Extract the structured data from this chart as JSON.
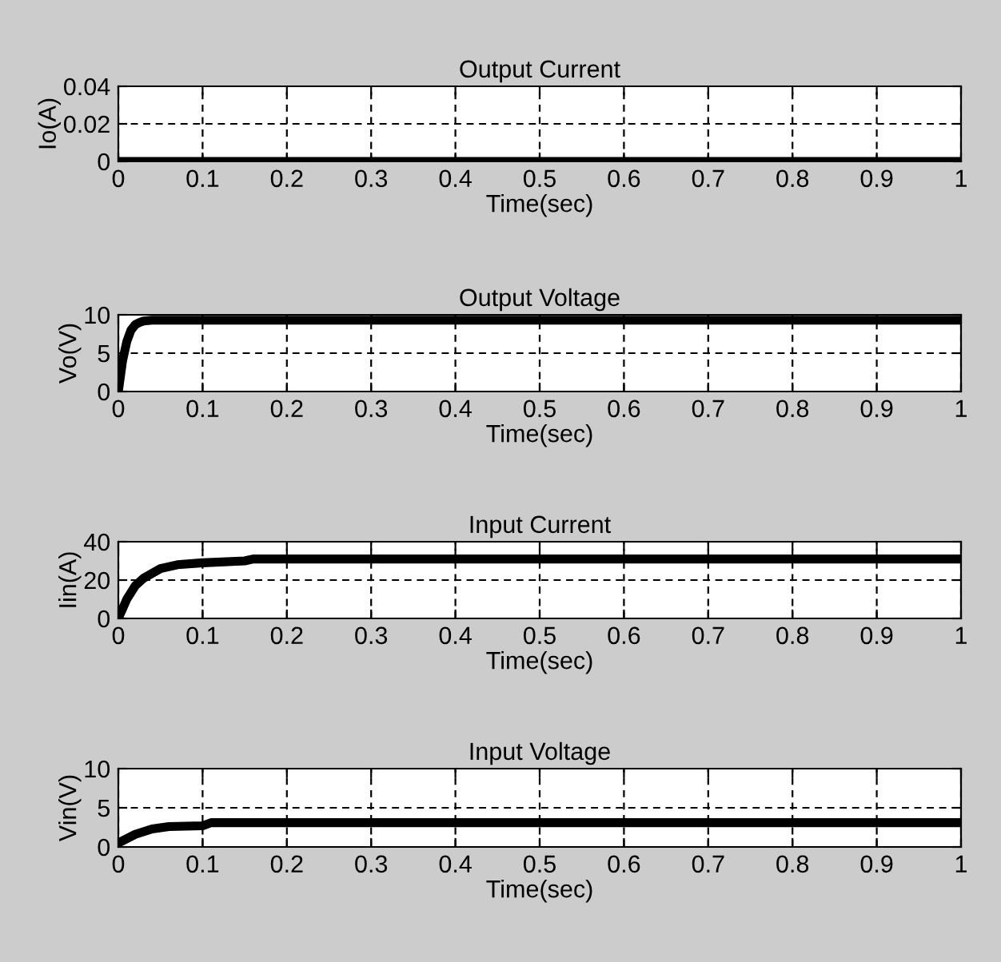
{
  "chart_data": [
    {
      "type": "line",
      "title": "Output Current",
      "xlabel": "Time(sec)",
      "ylabel": "Io(A)",
      "xlim": [
        0,
        1
      ],
      "ylim": [
        0,
        0.04
      ],
      "xticks": [
        0,
        0.1,
        0.2,
        0.3,
        0.4,
        0.5,
        0.6,
        0.7,
        0.8,
        0.9,
        1
      ],
      "yticks": [
        0,
        0.02,
        0.04
      ],
      "grid": true,
      "series": [
        {
          "color": "#000000",
          "x": [
            0,
            0.5,
            1
          ],
          "values": [
            0,
            0,
            0
          ]
        }
      ]
    },
    {
      "type": "line",
      "title": "Output Voltage",
      "xlabel": "Time(sec)",
      "ylabel": "Vo(V)",
      "xlim": [
        0,
        1
      ],
      "ylim": [
        0,
        10
      ],
      "xticks": [
        0,
        0.1,
        0.2,
        0.3,
        0.4,
        0.5,
        0.6,
        0.7,
        0.8,
        0.9,
        1
      ],
      "yticks": [
        0,
        5,
        10
      ],
      "grid": true,
      "series": [
        {
          "color": "#000000",
          "x": [
            0,
            0.005,
            0.01,
            0.015,
            0.02,
            0.025,
            0.03,
            0.04,
            0.1,
            0.5,
            1
          ],
          "values": [
            0,
            4,
            6.5,
            8,
            8.7,
            9,
            9.2,
            9.3,
            9.3,
            9.3,
            9.3
          ]
        }
      ]
    },
    {
      "type": "line",
      "title": "Input Current",
      "xlabel": "Time(sec)",
      "ylabel": "Iin(A)",
      "xlim": [
        0,
        1
      ],
      "ylim": [
        0,
        40
      ],
      "xticks": [
        0,
        0.1,
        0.2,
        0.3,
        0.4,
        0.5,
        0.6,
        0.7,
        0.8,
        0.9,
        1
      ],
      "yticks": [
        0,
        20,
        40
      ],
      "grid": true,
      "series": [
        {
          "color": "#000000",
          "x": [
            0,
            0.01,
            0.02,
            0.03,
            0.05,
            0.07,
            0.1,
            0.15,
            0.16,
            0.5,
            1
          ],
          "values": [
            0,
            10,
            17,
            21,
            26,
            28,
            29,
            30,
            31,
            31,
            31
          ]
        }
      ]
    },
    {
      "type": "line",
      "title": "Input Voltage",
      "xlabel": "Time(sec)",
      "ylabel": "Vin(V)",
      "xlim": [
        0,
        1
      ],
      "ylim": [
        0,
        10
      ],
      "xticks": [
        0,
        0.1,
        0.2,
        0.3,
        0.4,
        0.5,
        0.6,
        0.7,
        0.8,
        0.9,
        1
      ],
      "yticks": [
        0,
        5,
        10
      ],
      "grid": true,
      "series": [
        {
          "color": "#000000",
          "x": [
            0,
            0.02,
            0.04,
            0.06,
            0.1,
            0.11,
            0.5,
            1
          ],
          "values": [
            0.5,
            1.6,
            2.3,
            2.6,
            2.7,
            3.1,
            3.1,
            3.1
          ]
        }
      ]
    }
  ]
}
